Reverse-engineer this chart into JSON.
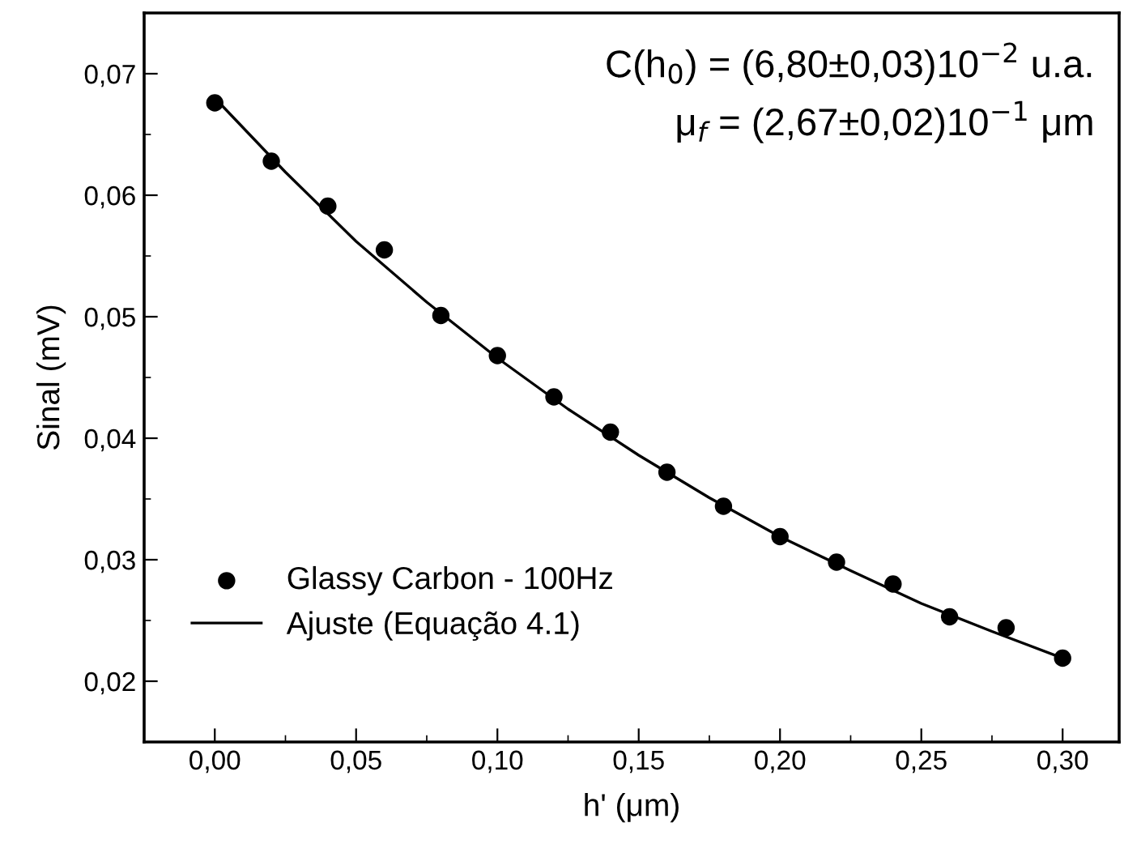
{
  "chart_data": {
    "type": "scatter",
    "xlabel": "h' (μm)",
    "ylabel": "Sinal (mV)",
    "annotations": [
      "C(h$_{0}$) = (6,80±0,03)10$^{−2}$ u.a.",
      "μ$_{f}$ = (2,67±0,02)10$^{−1}$ μm"
    ],
    "series": [
      {
        "name": "Glassy Carbon - 100Hz",
        "color": "#000000",
        "marker": "circle",
        "x": [
          0,
          0.02,
          0.04,
          0.06,
          0.08,
          0.1,
          0.12,
          0.14,
          0.16,
          0.18,
          0.2,
          0.22,
          0.24,
          0.26,
          0.28,
          0.3
        ],
        "values": [
          0.0676,
          0.0628,
          0.0591,
          0.0555,
          0.0501,
          0.0468,
          0.0434,
          0.0405,
          0.0372,
          0.0344,
          0.0319,
          0.0298,
          0.028,
          0.0253,
          0.0244,
          0.0219
        ]
      },
      {
        "name": "Ajuste (Equação 4.1)",
        "type": "line",
        "color": "#000000",
        "marker": "none",
        "line_style": "solid",
        "x": [
          0,
          0.025,
          0.05,
          0.075,
          0.1,
          0.125,
          0.15,
          0.175,
          0.2,
          0.225,
          0.25,
          0.275,
          0.3
        ],
        "values": [
          0.068,
          0.0619,
          0.0562,
          0.0512,
          0.0466,
          0.0424,
          0.0386,
          0.0351,
          0.0319,
          0.0291,
          0.0264,
          0.0241,
          0.0219
        ]
      }
    ],
    "xlim": [
      -0.025,
      0.32
    ],
    "ylim": [
      0.015,
      0.075
    ],
    "xticks": [
      {
        "value": 0,
        "label": "0,00"
      },
      {
        "value": 0.05,
        "label": "0,05"
      },
      {
        "value": 0.1,
        "label": "0,10"
      },
      {
        "value": 0.15,
        "label": "0,15"
      },
      {
        "value": 0.2,
        "label": "0,20"
      },
      {
        "value": 0.25,
        "label": "0,25"
      },
      {
        "value": 0.3,
        "label": "0,30"
      }
    ],
    "yticks": [
      {
        "value": 0.02,
        "label": "0,02"
      },
      {
        "value": 0.03,
        "label": "0,03"
      },
      {
        "value": 0.04,
        "label": "0,04"
      },
      {
        "value": 0.05,
        "label": "0,05"
      },
      {
        "value": 0.06,
        "label": "0,06"
      },
      {
        "value": 0.07,
        "label": "0,07"
      }
    ],
    "grid": false,
    "legend": "bottom left"
  }
}
